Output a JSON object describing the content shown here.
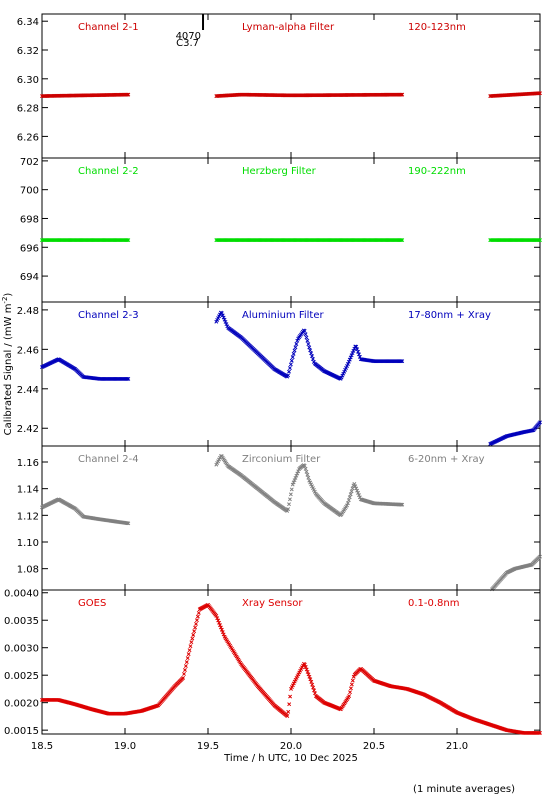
{
  "xaxis": {
    "label": "Time / h UTC, 10 Dec 2025",
    "range": [
      18.5,
      21.5
    ],
    "ticks": [
      "18.5",
      "19.0",
      "19.5",
      "20.0",
      "20.5",
      "21.0"
    ]
  },
  "ylabel": "Calibrated Signal / (mW m",
  "ylabel_sup": "-2",
  "ylabel_end": ")",
  "footnote": "(1 minute averages)",
  "flare": {
    "id": "4070",
    "class": "C3.7",
    "time": 19.47
  },
  "chart_data": [
    {
      "type": "scatter",
      "channel": "Channel 2-1",
      "filter": "Lyman-alpha Filter",
      "band": "120-123nm",
      "color": "#cc0000",
      "ylim": [
        6.245,
        6.345
      ],
      "yticks": [
        "6.26",
        "6.28",
        "6.30",
        "6.32",
        "6.34"
      ],
      "segments": [
        {
          "t0": 18.5,
          "t1": 19.02,
          "pts": [
            [
              18.5,
              6.288
            ],
            [
              19.02,
              6.289
            ]
          ]
        },
        {
          "t0": 19.55,
          "t1": 20.67,
          "pts": [
            [
              19.55,
              6.288
            ],
            [
              19.7,
              6.289
            ],
            [
              20.0,
              6.2885
            ],
            [
              20.67,
              6.289
            ]
          ]
        },
        {
          "t0": 21.2,
          "t1": 21.5,
          "pts": [
            [
              21.2,
              6.288
            ],
            [
              21.5,
              6.29
            ]
          ]
        }
      ]
    },
    {
      "type": "scatter",
      "channel": "Channel 2-2",
      "filter": "Herzberg Filter",
      "band": "190-222nm",
      "color": "#00dd00",
      "ylim": [
        692.2,
        702.2
      ],
      "yticks": [
        "694",
        "696",
        "698",
        "700",
        "702"
      ],
      "segments": [
        {
          "t0": 18.5,
          "t1": 19.02,
          "pts": [
            [
              18.5,
              696.5
            ],
            [
              19.02,
              696.5
            ]
          ]
        },
        {
          "t0": 19.55,
          "t1": 20.67,
          "pts": [
            [
              19.55,
              696.5
            ],
            [
              20.67,
              696.5
            ]
          ]
        },
        {
          "t0": 21.2,
          "t1": 21.5,
          "pts": [
            [
              21.2,
              696.5
            ],
            [
              21.5,
              696.5
            ]
          ]
        }
      ]
    },
    {
      "type": "scatter",
      "channel": "Channel 2-3",
      "filter": "Aluminium Filter",
      "band": "17-80nm + Xray",
      "color": "#0000bb",
      "ylim": [
        2.411,
        2.484
      ],
      "yticks": [
        "2.42",
        "2.44",
        "2.46",
        "2.48"
      ],
      "segments": [
        {
          "t0": 18.5,
          "t1": 19.02,
          "pts": [
            [
              18.5,
              2.451
            ],
            [
              18.6,
              2.455
            ],
            [
              18.7,
              2.45
            ],
            [
              18.75,
              2.446
            ],
            [
              18.85,
              2.445
            ],
            [
              19.02,
              2.445
            ]
          ]
        },
        {
          "t0": 19.55,
          "t1": 20.67,
          "pts": [
            [
              19.55,
              2.474
            ],
            [
              19.58,
              2.479
            ],
            [
              19.62,
              2.471
            ],
            [
              19.7,
              2.466
            ],
            [
              19.8,
              2.458
            ],
            [
              19.9,
              2.45
            ],
            [
              19.98,
              2.446
            ],
            [
              20.01,
              2.456
            ],
            [
              20.04,
              2.465
            ],
            [
              20.08,
              2.47
            ],
            [
              20.11,
              2.461
            ],
            [
              20.14,
              2.453
            ],
            [
              20.2,
              2.449
            ],
            [
              20.3,
              2.445
            ],
            [
              20.34,
              2.452
            ],
            [
              20.39,
              2.462
            ],
            [
              20.42,
              2.455
            ],
            [
              20.5,
              2.454
            ],
            [
              20.67,
              2.454
            ]
          ]
        },
        {
          "t0": 21.2,
          "t1": 21.5,
          "pts": [
            [
              21.2,
              2.412
            ],
            [
              21.25,
              2.414
            ],
            [
              21.3,
              2.416
            ],
            [
              21.4,
              2.418
            ],
            [
              21.46,
              2.419
            ],
            [
              21.5,
              2.423
            ]
          ]
        }
      ]
    },
    {
      "type": "scatter",
      "channel": "Channel 2-4",
      "filter": "Zirconium Filter",
      "band": "6-20nm + Xray",
      "color": "#808080",
      "ylim": [
        1.064,
        1.172
      ],
      "yticks": [
        "1.08",
        "1.10",
        "1.12",
        "1.14",
        "1.16"
      ],
      "segments": [
        {
          "t0": 18.5,
          "t1": 19.02,
          "pts": [
            [
              18.5,
              1.126
            ],
            [
              18.6,
              1.132
            ],
            [
              18.7,
              1.125
            ],
            [
              18.75,
              1.119
            ],
            [
              18.85,
              1.117
            ],
            [
              19.02,
              1.114
            ]
          ]
        },
        {
          "t0": 19.55,
          "t1": 20.67,
          "pts": [
            [
              19.55,
              1.158
            ],
            [
              19.58,
              1.165
            ],
            [
              19.62,
              1.157
            ],
            [
              19.7,
              1.15
            ],
            [
              19.8,
              1.14
            ],
            [
              19.9,
              1.13
            ],
            [
              19.98,
              1.123
            ],
            [
              20.01,
              1.143
            ],
            [
              20.05,
              1.155
            ],
            [
              20.08,
              1.158
            ],
            [
              20.11,
              1.146
            ],
            [
              20.15,
              1.136
            ],
            [
              20.2,
              1.129
            ],
            [
              20.3,
              1.12
            ],
            [
              20.34,
              1.128
            ],
            [
              20.38,
              1.144
            ],
            [
              20.42,
              1.132
            ],
            [
              20.5,
              1.129
            ],
            [
              20.67,
              1.128
            ]
          ]
        },
        {
          "t0": 21.2,
          "t1": 21.5,
          "pts": [
            [
              21.2,
              1.063
            ],
            [
              21.25,
              1.07
            ],
            [
              21.3,
              1.077
            ],
            [
              21.35,
              1.08
            ],
            [
              21.45,
              1.083
            ],
            [
              21.5,
              1.089
            ]
          ]
        }
      ]
    },
    {
      "type": "scatter",
      "channel": "GOES",
      "filter": "Xray Sensor",
      "band": "0.1-0.8nm",
      "color": "#dd0000",
      "ylim": [
        0.00143,
        0.00405
      ],
      "yticks": [
        "0.0015",
        "0.0020",
        "0.0025",
        "0.0030",
        "0.0035",
        "0.0040"
      ],
      "segments": [
        {
          "t0": 18.5,
          "t1": 21.5,
          "pts": [
            [
              18.5,
              0.00205
            ],
            [
              18.6,
              0.00205
            ],
            [
              18.7,
              0.00197
            ],
            [
              18.8,
              0.00188
            ],
            [
              18.9,
              0.0018
            ],
            [
              19.0,
              0.0018
            ],
            [
              19.1,
              0.00185
            ],
            [
              19.2,
              0.00195
            ],
            [
              19.3,
              0.0023
            ],
            [
              19.35,
              0.00245
            ],
            [
              19.4,
              0.0031
            ],
            [
              19.45,
              0.0037
            ],
            [
              19.5,
              0.00378
            ],
            [
              19.55,
              0.00358
            ],
            [
              19.6,
              0.0032
            ],
            [
              19.7,
              0.0027
            ],
            [
              19.8,
              0.0023
            ],
            [
              19.9,
              0.00195
            ],
            [
              19.98,
              0.00175
            ],
            [
              20.0,
              0.00225
            ],
            [
              20.05,
              0.00255
            ],
            [
              20.08,
              0.00272
            ],
            [
              20.12,
              0.0024
            ],
            [
              20.15,
              0.00212
            ],
            [
              20.2,
              0.002
            ],
            [
              20.3,
              0.00188
            ],
            [
              20.35,
              0.00212
            ],
            [
              20.38,
              0.0025
            ],
            [
              20.42,
              0.00262
            ],
            [
              20.5,
              0.0024
            ],
            [
              20.6,
              0.0023
            ],
            [
              20.7,
              0.00225
            ],
            [
              20.8,
              0.00215
            ],
            [
              20.9,
              0.002
            ],
            [
              21.0,
              0.00182
            ],
            [
              21.1,
              0.0017
            ],
            [
              21.2,
              0.0016
            ],
            [
              21.3,
              0.0015
            ],
            [
              21.4,
              0.00145
            ],
            [
              21.5,
              0.00145
            ]
          ]
        }
      ]
    }
  ]
}
